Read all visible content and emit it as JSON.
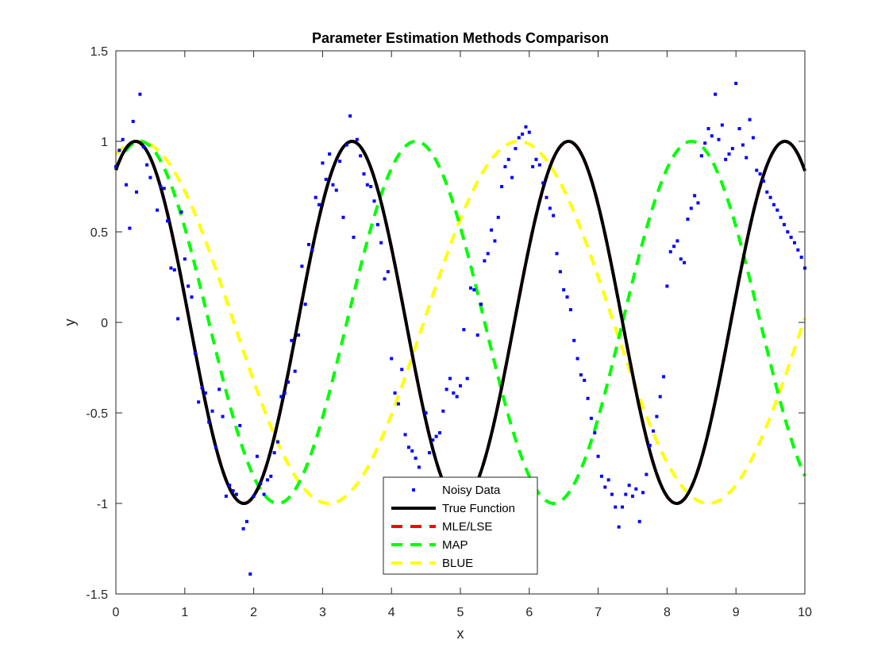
{
  "chart_data": {
    "type": "line",
    "title": "Parameter Estimation Methods Comparison",
    "xlabel": "x",
    "ylabel": "y",
    "xlim": [
      0,
      10
    ],
    "ylim": [
      -1.5,
      1.5
    ],
    "xticks": [
      "0",
      "1",
      "2",
      "3",
      "4",
      "5",
      "6",
      "7",
      "8",
      "9",
      "10"
    ],
    "yticks": [
      "-1.5",
      "-1",
      "-0.5",
      "0",
      "0.5",
      "1",
      "1.5"
    ],
    "grid": false,
    "legend_position": "bottom-center",
    "series": [
      {
        "name": "Noisy Data",
        "style": "markers",
        "color": "#0000ff",
        "x": [
          0.0,
          0.05,
          0.1,
          0.15,
          0.2,
          0.25,
          0.3,
          0.35,
          0.4,
          0.45,
          0.5,
          0.6,
          0.65,
          0.7,
          0.75,
          0.8,
          0.85,
          0.9,
          0.95,
          1.0,
          1.05,
          1.1,
          1.15,
          1.2,
          1.25,
          1.3,
          1.35,
          1.4,
          1.45,
          1.5,
          1.55,
          1.6,
          1.65,
          1.7,
          1.75,
          1.8,
          1.85,
          1.9,
          1.95,
          2.0,
          2.05,
          2.1,
          2.15,
          2.2,
          2.25,
          2.3,
          2.35,
          2.4,
          2.45,
          2.5,
          2.55,
          2.6,
          2.65,
          2.7,
          2.75,
          2.8,
          2.85,
          2.9,
          2.95,
          3.0,
          3.05,
          3.1,
          3.15,
          3.2,
          3.25,
          3.3,
          3.35,
          3.4,
          3.45,
          3.5,
          3.55,
          3.6,
          3.65,
          3.7,
          3.75,
          3.8,
          3.85,
          3.9,
          3.95,
          4.0,
          4.05,
          4.1,
          4.15,
          4.2,
          4.25,
          4.3,
          4.35,
          4.4,
          4.45,
          4.5,
          4.55,
          4.6,
          4.65,
          4.7,
          4.75,
          4.8,
          4.85,
          4.9,
          4.95,
          5.0,
          5.05,
          5.1,
          5.15,
          5.2,
          5.25,
          5.3,
          5.35,
          5.4,
          5.45,
          5.5,
          5.55,
          5.6,
          5.65,
          5.7,
          5.75,
          5.8,
          5.85,
          5.9,
          5.95,
          6.0,
          6.05,
          6.1,
          6.15,
          6.2,
          6.25,
          6.3,
          6.35,
          6.4,
          6.45,
          6.5,
          6.55,
          6.6,
          6.65,
          6.7,
          6.75,
          6.8,
          6.85,
          6.9,
          6.95,
          7.0,
          7.05,
          7.1,
          7.15,
          7.2,
          7.25,
          7.3,
          7.35,
          7.4,
          7.45,
          7.5,
          7.55,
          7.6,
          7.65,
          7.7,
          7.75,
          7.8,
          7.85,
          7.9,
          7.95,
          8.0,
          8.05,
          8.1,
          8.15,
          8.2,
          8.25,
          8.3,
          8.35,
          8.4,
          8.45,
          8.5,
          8.55,
          8.6,
          8.65,
          8.7,
          8.75,
          8.8,
          8.85,
          8.9,
          8.95,
          9.0,
          9.05,
          9.1,
          9.15,
          9.2,
          9.25,
          9.3,
          9.35,
          9.4,
          9.45,
          9.5,
          9.55,
          9.6,
          9.65,
          9.7,
          9.75,
          9.8,
          9.85,
          9.9,
          9.95,
          10.0
        ],
        "y": [
          0.86,
          0.95,
          1.01,
          0.76,
          0.52,
          1.11,
          0.72,
          1.26,
          0.97,
          0.87,
          0.8,
          0.62,
          0.75,
          0.74,
          0.56,
          0.3,
          0.29,
          0.02,
          0.61,
          0.35,
          0.2,
          0.14,
          -0.17,
          -0.44,
          -0.36,
          -0.39,
          -0.55,
          -0.49,
          -0.69,
          -0.37,
          -0.52,
          -0.96,
          -0.9,
          -0.93,
          -0.95,
          -0.57,
          -1.14,
          -1.1,
          -1.39,
          -0.96,
          -0.74,
          -0.89,
          -0.95,
          -0.87,
          -0.85,
          -0.72,
          -0.66,
          -0.41,
          -0.39,
          -0.33,
          -0.1,
          -0.27,
          -0.07,
          0.31,
          0.1,
          0.43,
          0.4,
          0.69,
          0.65,
          0.88,
          0.79,
          0.93,
          0.76,
          0.73,
          0.89,
          0.58,
          0.98,
          1.14,
          0.47,
          1.01,
          0.92,
          0.82,
          0.76,
          0.75,
          0.67,
          0.54,
          0.44,
          0.24,
          0.28,
          -0.2,
          -0.39,
          -0.45,
          -0.26,
          -0.62,
          -0.69,
          -0.71,
          -0.75,
          -0.8,
          -0.96,
          -0.5,
          -0.72,
          -0.65,
          -0.63,
          -0.61,
          -0.49,
          -0.37,
          -0.31,
          -0.39,
          -0.41,
          -0.35,
          -0.04,
          -0.31,
          0.19,
          0.18,
          -0.07,
          0.1,
          0.34,
          0.38,
          0.51,
          0.45,
          0.58,
          0.75,
          0.86,
          0.9,
          0.8,
          0.96,
          1.02,
          1.04,
          1.08,
          1.05,
          0.86,
          0.9,
          0.87,
          0.77,
          0.69,
          0.63,
          0.59,
          0.38,
          0.28,
          0.18,
          0.14,
          0.07,
          -0.1,
          -0.2,
          -0.29,
          -0.32,
          -0.42,
          -0.53,
          -0.61,
          -0.74,
          -0.85,
          -0.91,
          -0.87,
          -0.95,
          -1.02,
          -1.13,
          -1.02,
          -0.95,
          -0.9,
          -0.96,
          -0.92,
          -1.1,
          -0.94,
          -0.84,
          -0.68,
          -0.6,
          -0.52,
          -0.41,
          -0.3,
          0.2,
          0.39,
          0.42,
          0.45,
          0.35,
          0.33,
          0.57,
          0.63,
          0.7,
          0.66,
          0.92,
          0.99,
          1.07,
          1.03,
          1.26,
          1.01,
          1.09,
          0.9,
          0.93,
          0.96,
          1.32,
          1.07,
          0.98,
          0.91,
          1.12,
          1.02,
          0.84,
          0.82,
          0.78,
          0.72,
          0.69,
          0.65,
          0.62,
          0.58,
          0.54,
          0.5,
          0.47,
          0.44,
          0.4,
          0.36,
          0.3
        ]
      },
      {
        "name": "True Function",
        "style": "solid",
        "color": "#000000",
        "function": "sin(2x + 1)"
      },
      {
        "name": "MLE/LSE",
        "style": "dashed",
        "color": "#ff0000",
        "function": "sin(2x + 1)"
      },
      {
        "name": "MAP",
        "style": "dashed",
        "color": "#00ff00",
        "function": "cos(1.57x - 0.55)"
      },
      {
        "name": "BLUE",
        "style": "dashed",
        "color": "#ffff00",
        "function": "cos(1.14x - 0.38)"
      }
    ]
  }
}
